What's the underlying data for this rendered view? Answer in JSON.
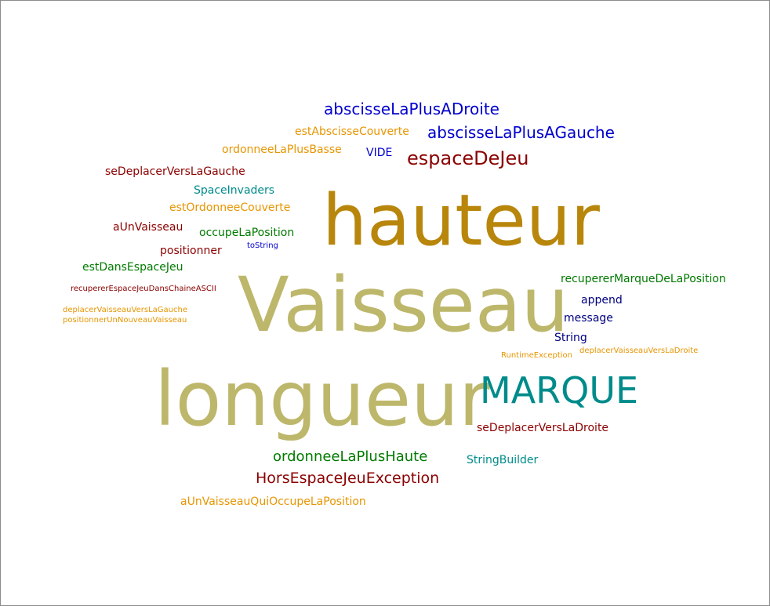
{
  "colors": {
    "gold": "#b8860b",
    "khaki": "#bdb76b",
    "teal": "#008b8b",
    "darkred": "#8b0000",
    "blue": "#0000cd",
    "navy": "#000080",
    "orange": "#e69500",
    "green": "#007a00"
  },
  "words": [
    {
      "text": "hauteur",
      "color": "gold"
    },
    {
      "text": "Vaisseau",
      "color": "khaki"
    },
    {
      "text": "longueur",
      "color": "khaki"
    },
    {
      "text": "MARQUE",
      "color": "teal"
    },
    {
      "text": "abscisseLaPlusADroite",
      "color": "blue"
    },
    {
      "text": "abscisseLaPlusAGauche",
      "color": "blue"
    },
    {
      "text": "estAbscisseCouverte",
      "color": "orange"
    },
    {
      "text": "ordonneeLaPlusBasse",
      "color": "orange"
    },
    {
      "text": "VIDE",
      "color": "blue"
    },
    {
      "text": "espaceDeJeu",
      "color": "darkred"
    },
    {
      "text": "seDeplacerVersLaGauche",
      "color": "darkred"
    },
    {
      "text": "SpaceInvaders",
      "color": "teal"
    },
    {
      "text": "estOrdonneeCouverte",
      "color": "orange"
    },
    {
      "text": "aUnVaisseau",
      "color": "darkred"
    },
    {
      "text": "occupeLaPosition",
      "color": "green"
    },
    {
      "text": "toString",
      "color": "blue"
    },
    {
      "text": "positionner",
      "color": "darkred"
    },
    {
      "text": "estDansEspaceJeu",
      "color": "green"
    },
    {
      "text": "recupererEspaceJeuDansChaineASCII",
      "color": "darkred"
    },
    {
      "text": "deplacerVaisseauVersLaGauche",
      "color": "orange"
    },
    {
      "text": "positionnerUnNouveauVaisseau",
      "color": "orange"
    },
    {
      "text": "recupererMarqueDeLaPosition",
      "color": "green"
    },
    {
      "text": "append",
      "color": "navy"
    },
    {
      "text": "message",
      "color": "navy"
    },
    {
      "text": "String",
      "color": "navy"
    },
    {
      "text": "RuntimeException",
      "color": "orange"
    },
    {
      "text": "deplacerVaisseauVersLaDroite",
      "color": "orange"
    },
    {
      "text": "seDeplacerVersLaDroite",
      "color": "darkred"
    },
    {
      "text": "ordonneeLaPlusHaute",
      "color": "green"
    },
    {
      "text": "StringBuilder",
      "color": "teal"
    },
    {
      "text": "HorsEspaceJeuException",
      "color": "darkred"
    },
    {
      "text": "aUnVaisseauQuiOccupeLaPosition",
      "color": "orange"
    }
  ]
}
